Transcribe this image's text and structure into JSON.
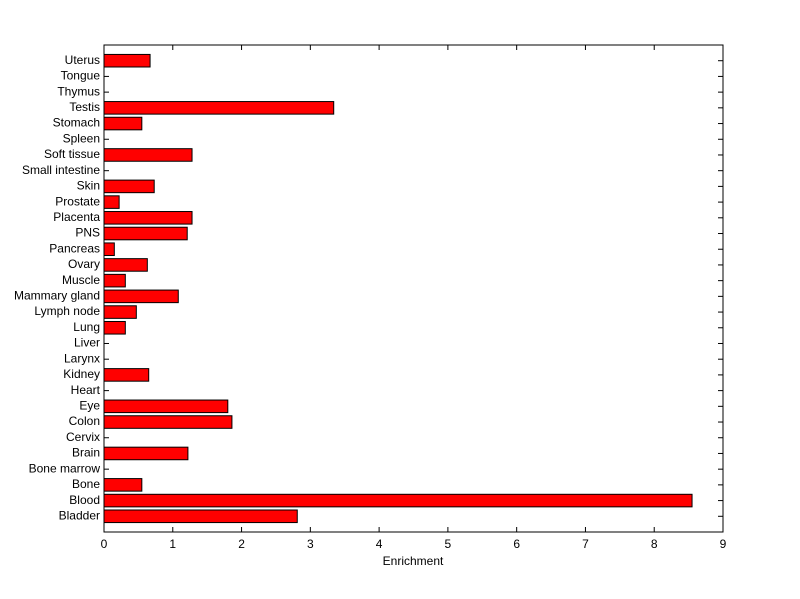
{
  "chart_data": {
    "type": "barh",
    "xlabel": "Enrichment",
    "categories": [
      "Bladder",
      "Blood",
      "Bone",
      "Bone marrow",
      "Brain",
      "Cervix",
      "Colon",
      "Eye",
      "Heart",
      "Kidney",
      "Larynx",
      "Liver",
      "Lung",
      "Lymph node",
      "Mammary gland",
      "Muscle",
      "Ovary",
      "Pancreas",
      "PNS",
      "Placenta",
      "Prostate",
      "Skin",
      "Small intestine",
      "Soft tissue",
      "Spleen",
      "Stomach",
      "Testis",
      "Thymus",
      "Tongue",
      "Uterus"
    ],
    "values": [
      2.81,
      8.55,
      0.55,
      0,
      1.22,
      0,
      1.86,
      1.8,
      0,
      0.65,
      0,
      0,
      0.31,
      0.47,
      1.08,
      0.31,
      0.63,
      0.15,
      1.21,
      1.28,
      0.22,
      0.73,
      0,
      1.28,
      0,
      0.55,
      3.34,
      0,
      0,
      0.67
    ],
    "color": "#ff0000",
    "xlim": [
      0,
      9
    ],
    "xticks": [
      0,
      1,
      2,
      3,
      4,
      5,
      6,
      7,
      8,
      9
    ]
  }
}
